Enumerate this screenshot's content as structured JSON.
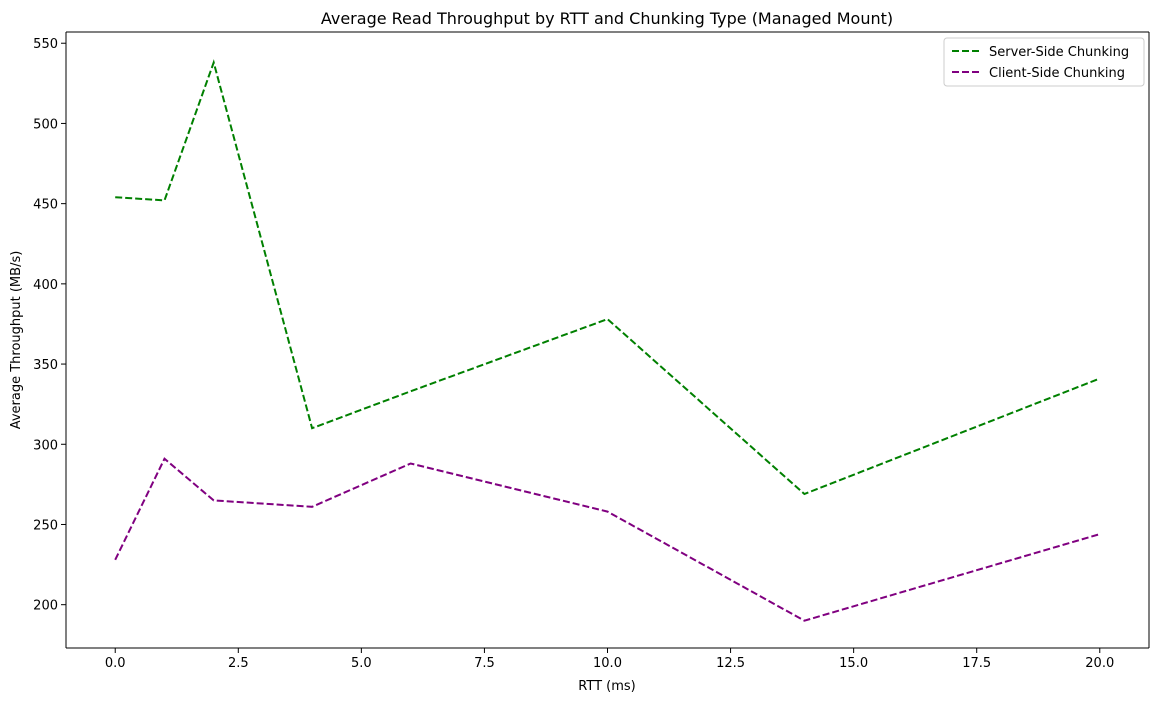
{
  "chart_data": {
    "type": "line",
    "title": "Average Read Throughput by RTT and Chunking Type (Managed Mount)",
    "xlabel": "RTT (ms)",
    "ylabel": "Average Throughput (MB/s)",
    "xlim": [
      -1,
      21
    ],
    "ylim": [
      173,
      557
    ],
    "xticks": [
      0,
      2.5,
      5,
      7.5,
      10,
      12.5,
      15,
      17.5,
      20
    ],
    "xtick_labels": [
      "0.0",
      "2.5",
      "5.0",
      "7.5",
      "10.0",
      "12.5",
      "15.0",
      "17.5",
      "20.0"
    ],
    "yticks": [
      200,
      250,
      300,
      350,
      400,
      450,
      500,
      550
    ],
    "ytick_labels": [
      "200",
      "250",
      "300",
      "350",
      "400",
      "450",
      "500",
      "550"
    ],
    "grid": false,
    "legend_position": "top-right",
    "x": [
      0,
      1,
      2,
      4,
      6,
      10,
      14,
      20
    ],
    "series": [
      {
        "name": "Server-Side Chunking",
        "color": "#008000",
        "style": "dashed",
        "values": [
          454,
          452,
          538,
          310,
          333,
          378,
          269,
          341
        ]
      },
      {
        "name": "Client-Side Chunking",
        "color": "#800080",
        "style": "dashed",
        "values": [
          228,
          291,
          265,
          261,
          288,
          258,
          190,
          244
        ]
      }
    ]
  }
}
